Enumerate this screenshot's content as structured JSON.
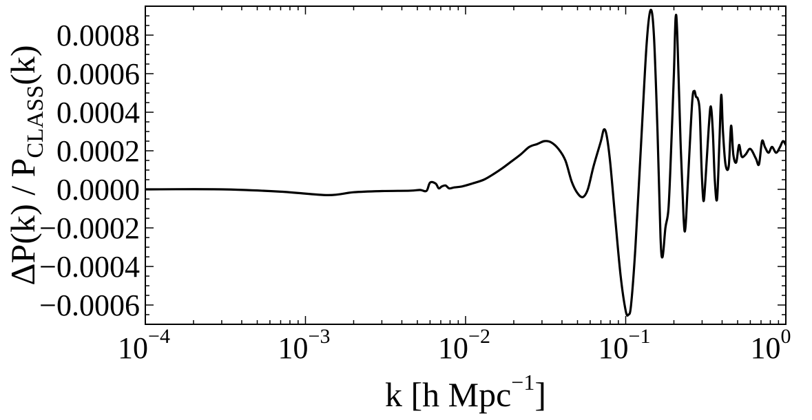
{
  "chart_data": {
    "type": "line",
    "x_scale": "log",
    "xlim": [
      0.0001,
      1
    ],
    "ylim": [
      -0.0007,
      0.00095
    ],
    "grid": false,
    "legend": "none",
    "line_color": "#000000",
    "xlabel": {
      "main": "k  [h Mpc",
      "sup": "−1",
      "end": "]"
    },
    "ylabel": {
      "main": "ΔP(k) / P",
      "sub": "CLASS",
      "end": "(k)"
    },
    "x_ticks": [
      {
        "value": 0.0001,
        "base": "10",
        "exp": "−4"
      },
      {
        "value": 0.001,
        "base": "10",
        "exp": "−3"
      },
      {
        "value": 0.01,
        "base": "10",
        "exp": "−2"
      },
      {
        "value": 0.1,
        "base": "10",
        "exp": "−1"
      },
      {
        "value": 1,
        "base": "10",
        "exp": "0"
      }
    ],
    "y_ticks": [
      {
        "value": 0.0008,
        "label": "0.0008"
      },
      {
        "value": 0.0006,
        "label": "0.0006"
      },
      {
        "value": 0.0004,
        "label": "0.0004"
      },
      {
        "value": 0.0002,
        "label": "0.0002"
      },
      {
        "value": 0.0,
        "label": "0.0000"
      },
      {
        "value": -0.0002,
        "label": "−0.0002"
      },
      {
        "value": -0.0004,
        "label": "−0.0004"
      },
      {
        "value": -0.0006,
        "label": "−0.0006"
      }
    ],
    "series": [
      {
        "points": [
          [
            0.0001,
            0.0
          ],
          [
            0.0003,
            0.0
          ],
          [
            0.0007,
            -1.2e-05
          ],
          [
            0.00138,
            -3e-05
          ],
          [
            0.002,
            -1.5e-05
          ],
          [
            0.003,
            -9e-06
          ],
          [
            0.0045,
            -7e-06
          ],
          [
            0.0052,
            -3e-06
          ],
          [
            0.0057,
            -8e-06
          ],
          [
            0.006,
            3.5e-05
          ],
          [
            0.0065,
            3e-05
          ],
          [
            0.0068,
            5e-06
          ],
          [
            0.0071,
            1.5e-05
          ],
          [
            0.0075,
            2e-05
          ],
          [
            0.0079,
            5e-06
          ],
          [
            0.0085,
            1e-05
          ],
          [
            0.0095,
            1.5e-05
          ],
          [
            0.011,
            3e-05
          ],
          [
            0.013,
            5e-05
          ],
          [
            0.015,
            8e-05
          ],
          [
            0.017,
            0.00011
          ],
          [
            0.019,
            0.00014
          ],
          [
            0.022,
            0.00018
          ],
          [
            0.025,
            0.00022
          ],
          [
            0.028,
            0.000235
          ],
          [
            0.031,
            0.00025
          ],
          [
            0.034,
            0.000245
          ],
          [
            0.038,
            0.00021
          ],
          [
            0.042,
            0.00015
          ],
          [
            0.046,
            4e-05
          ],
          [
            0.05,
            -2e-05
          ],
          [
            0.054,
            -4e-05
          ],
          [
            0.058,
            0.0
          ],
          [
            0.063,
            0.00012
          ],
          [
            0.07,
            0.00025
          ],
          [
            0.073,
            0.00031
          ],
          [
            0.076,
            0.00028
          ],
          [
            0.08,
            0.00014
          ],
          [
            0.086,
            -0.00015
          ],
          [
            0.093,
            -0.00045
          ],
          [
            0.1,
            -0.00063
          ],
          [
            0.104,
            -0.00065
          ],
          [
            0.108,
            -0.0006
          ],
          [
            0.115,
            -0.0003
          ],
          [
            0.125,
            0.00025
          ],
          [
            0.135,
            0.00075
          ],
          [
            0.143,
            0.00093
          ],
          [
            0.15,
            0.0008
          ],
          [
            0.158,
            0.0003
          ],
          [
            0.165,
            -0.00025
          ],
          [
            0.17,
            -0.00035
          ],
          [
            0.177,
            -0.0002
          ],
          [
            0.185,
            -0.0001
          ],
          [
            0.192,
            0.0002
          ],
          [
            0.2,
            0.0006
          ],
          [
            0.205,
            0.00089
          ],
          [
            0.21,
            0.0008
          ],
          [
            0.22,
            0.00025
          ],
          [
            0.23,
            -0.00015
          ],
          [
            0.236,
            -0.0002
          ],
          [
            0.245,
            5e-05
          ],
          [
            0.26,
            0.00045
          ],
          [
            0.268,
            0.00051
          ],
          [
            0.275,
            0.00048
          ],
          [
            0.282,
            0.00047
          ],
          [
            0.29,
            0.0004
          ],
          [
            0.298,
            0.0001
          ],
          [
            0.306,
            -6e-05
          ],
          [
            0.315,
            5e-05
          ],
          [
            0.33,
            0.00032
          ],
          [
            0.34,
            0.00043
          ],
          [
            0.35,
            0.0003
          ],
          [
            0.36,
            5e-05
          ],
          [
            0.372,
            -5e-05
          ],
          [
            0.385,
            0.00025
          ],
          [
            0.395,
            0.00049
          ],
          [
            0.405,
            0.0003
          ],
          [
            0.42,
            0.00013
          ],
          [
            0.44,
            0.00012
          ],
          [
            0.455,
            0.00033
          ],
          [
            0.47,
            0.00018
          ],
          [
            0.49,
            0.00014
          ],
          [
            0.51,
            0.00023
          ],
          [
            0.53,
            0.00017
          ],
          [
            0.56,
            0.00018
          ],
          [
            0.6,
            0.00021
          ],
          [
            0.65,
            0.00016
          ],
          [
            0.68,
            0.00013
          ],
          [
            0.71,
            0.00025
          ],
          [
            0.74,
            0.00022
          ],
          [
            0.78,
            0.00019
          ],
          [
            0.82,
            0.00022
          ],
          [
            0.87,
            0.00019
          ],
          [
            0.92,
            0.00022
          ],
          [
            0.96,
            0.00025
          ],
          [
            1.0,
            0.00023
          ]
        ]
      }
    ]
  }
}
